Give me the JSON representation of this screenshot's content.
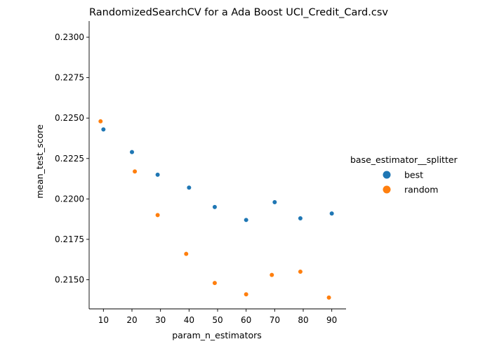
{
  "chart_data": {
    "type": "scatter",
    "title": "RandomizedSearchCV for a Ada Boost UCI_Credit_Card.csv",
    "xlabel": "param_n_estimators",
    "ylabel": "mean_test_score",
    "xlim": [
      5,
      95
    ],
    "ylim": [
      0.2132,
      0.231
    ],
    "x_ticks": [
      10,
      20,
      30,
      40,
      50,
      60,
      70,
      80,
      90
    ],
    "x_tick_labels": [
      "10",
      "20",
      "30",
      "40",
      "50",
      "60",
      "70",
      "80",
      "90"
    ],
    "y_ticks": [
      0.215,
      0.2175,
      0.22,
      0.2225,
      0.225,
      0.2275,
      0.23
    ],
    "y_tick_labels": [
      "0.2150",
      "0.2175",
      "0.2200",
      "0.2225",
      "0.2250",
      "0.2275",
      "0.2300"
    ],
    "grid": false,
    "legend": {
      "title": "base_estimator__splitter",
      "placement": "right-outside"
    },
    "series": [
      {
        "name": "best",
        "color": "#1f77b4",
        "x": [
          10,
          20,
          29,
          40,
          49,
          60,
          70,
          79,
          90
        ],
        "y": [
          0.2243,
          0.2229,
          0.2215,
          0.2207,
          0.2195,
          0.2187,
          0.2198,
          0.2188,
          0.2191
        ]
      },
      {
        "name": "random",
        "color": "#ff7f0e",
        "x": [
          9,
          21,
          29,
          39,
          49,
          60,
          69,
          79,
          89
        ],
        "y": [
          0.2248,
          0.2217,
          0.219,
          0.2166,
          0.2148,
          0.2141,
          0.2153,
          0.2155,
          0.2139
        ]
      }
    ]
  }
}
